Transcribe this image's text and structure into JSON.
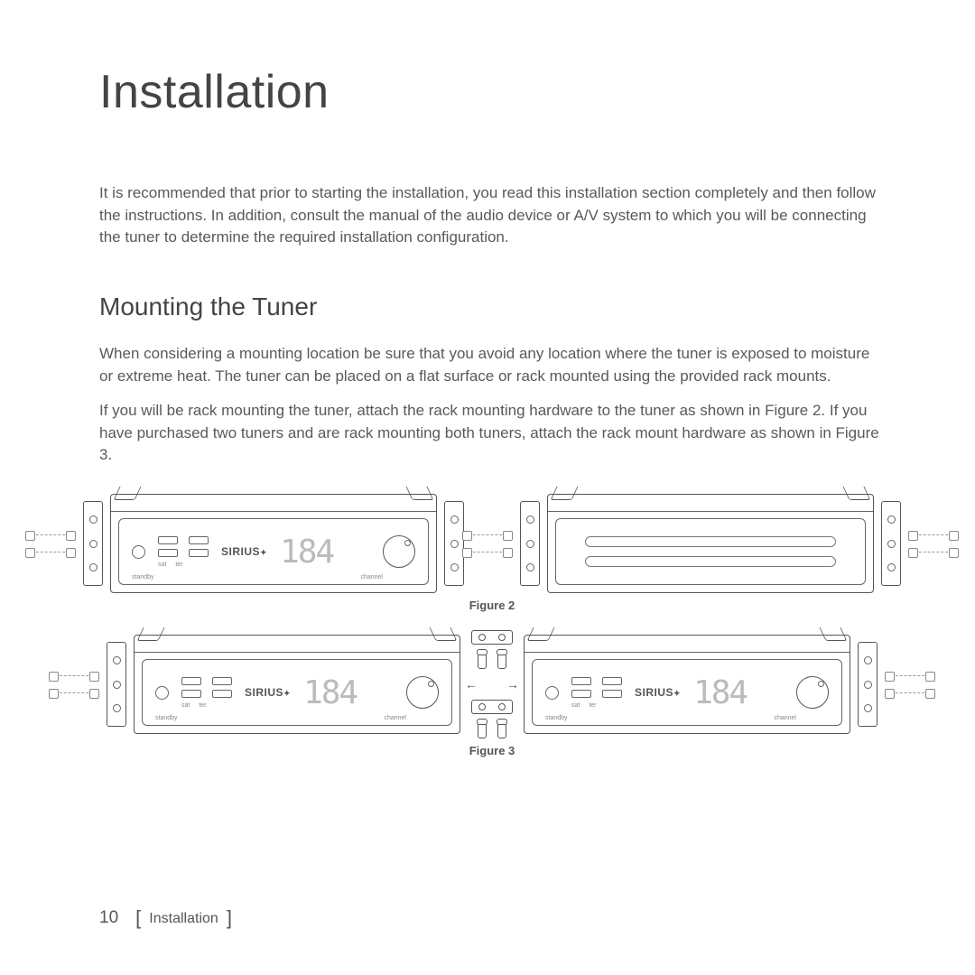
{
  "title": "Installation",
  "intro": "It is recommended that prior to starting the installation, you read this installation section completely and then follow the instructions. In addition, consult the manual of the audio device or A/V system to which you will be connecting the tuner to determine the required installation configuration.",
  "section_heading": "Mounting the Tuner",
  "para1": "When considering a mounting location be sure that you avoid any location where the tuner is exposed to moisture or extreme heat. The tuner can be placed on a flat surface or rack mounted using the provided rack mounts.",
  "para2": "If you will be rack mounting the tuner, attach the rack mounting hardware to the tuner as shown in Figure 2. If you have purchased two tuners and are rack mounting both tuners, attach the rack mount hardware as shown in Figure 3.",
  "figures": {
    "fig2_caption": "Figure 2",
    "fig3_caption": "Figure 3"
  },
  "tuner_face": {
    "brand": "SIRIUS",
    "display": "184",
    "label_standby": "standby",
    "label_sat": "sat",
    "label_ter": "ter",
    "label_channel": "channel"
  },
  "footer": {
    "page_number": "10",
    "section": "Installation"
  },
  "colors": {
    "text": "#595959",
    "line": "#555555",
    "faint": "#bbbbbb",
    "background": "#ffffff"
  }
}
